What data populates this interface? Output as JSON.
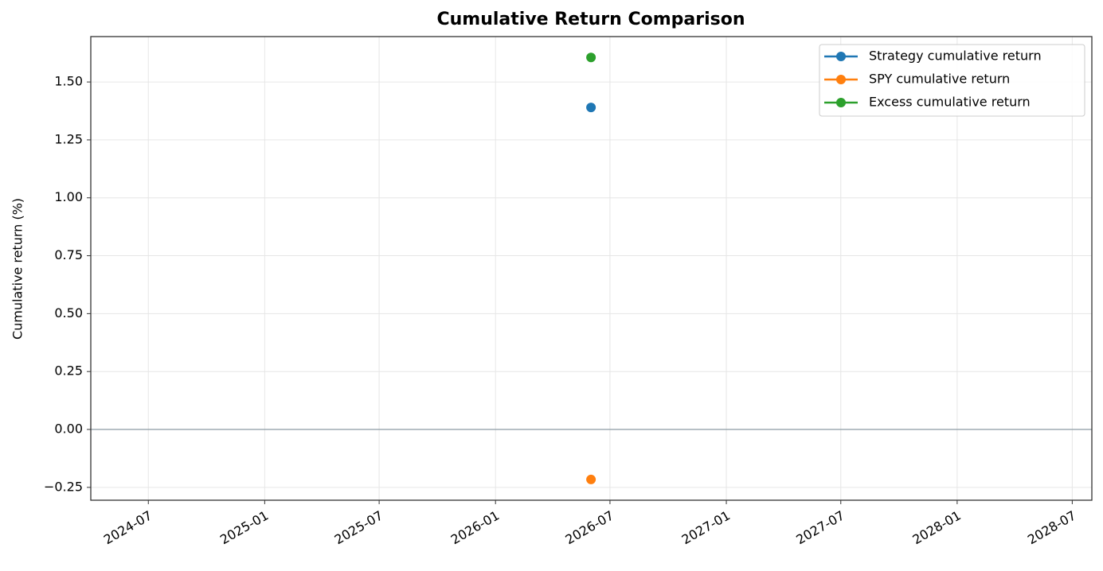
{
  "chart_data": {
    "type": "line",
    "title": "Cumulative Return Comparison",
    "y_label": "Cumulative return (%)",
    "x": [
      "2026-06"
    ],
    "series": [
      {
        "name": "Strategy cumulative return",
        "color": "#1f77b4",
        "values": [
          1.39
        ]
      },
      {
        "name": "SPY cumulative return",
        "color": "#ff7f0e",
        "values": [
          -0.216
        ]
      },
      {
        "name": "Excess cumulative return",
        "color": "#2ca02c",
        "values": [
          1.606
        ]
      }
    ],
    "xlim": [
      "2024-04",
      "2028-08"
    ],
    "xticks": [
      "2024-07",
      "2025-01",
      "2025-07",
      "2026-01",
      "2026-07",
      "2027-01",
      "2027-07",
      "2028-01",
      "2028-07"
    ],
    "ylim": [
      -0.3055,
      1.696
    ],
    "yticks": [
      {
        "value": -0.25,
        "label": "−0.25"
      },
      {
        "value": 0,
        "label": "0.00"
      },
      {
        "value": 0.25,
        "label": "0.25"
      },
      {
        "value": 0.5,
        "label": "0.50"
      },
      {
        "value": 0.75,
        "label": "0.75"
      },
      {
        "value": 1,
        "label": "1.00"
      },
      {
        "value": 1.25,
        "label": "1.25"
      },
      {
        "value": 1.5,
        "label": "1.50"
      }
    ],
    "reference_line": 0,
    "grid": true,
    "legend": "upper right"
  }
}
